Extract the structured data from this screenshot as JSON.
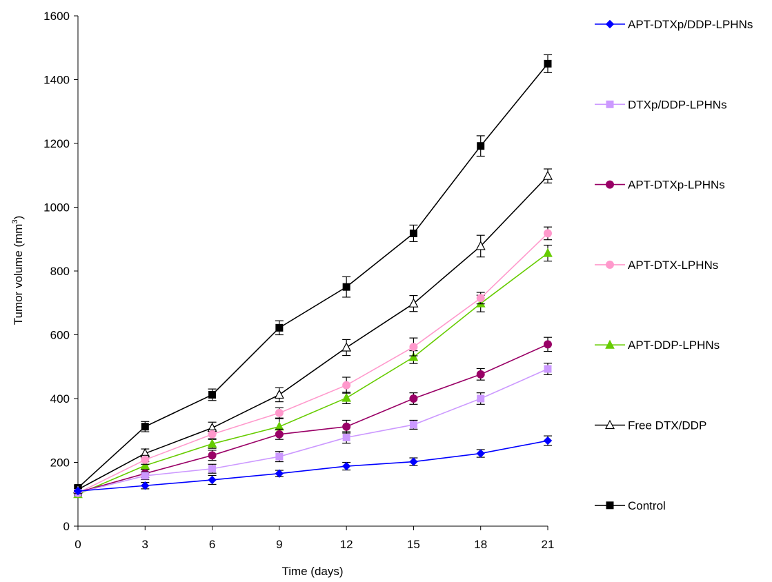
{
  "chart_data": {
    "type": "line",
    "xlabel": "Time (days)",
    "ylabel_main": "Tumor volume (mm",
    "ylabel_sup": "3",
    "ylabel_tail": ")",
    "x": [
      0,
      3,
      6,
      9,
      12,
      15,
      18,
      21
    ],
    "xlim": [
      0,
      21
    ],
    "ylim": [
      0,
      1600
    ],
    "yticks": [
      0,
      200,
      400,
      600,
      800,
      1000,
      1200,
      1400,
      1600
    ],
    "xticks": [
      0,
      3,
      6,
      9,
      12,
      15,
      18,
      21
    ],
    "grid": false,
    "legend_position": "right",
    "series": [
      {
        "name": "APT-DTXp/DDP-LPHNs",
        "color": "#0000ff",
        "marker": "diamond",
        "values": [
          110,
          127,
          145,
          165,
          188,
          202,
          228,
          268
        ],
        "errors": [
          8,
          10,
          14,
          10,
          12,
          12,
          12,
          15
        ]
      },
      {
        "name": "DTXp/DDP-LPHNs",
        "color": "#cc99ff",
        "marker": "square",
        "values": [
          105,
          158,
          180,
          218,
          278,
          318,
          400,
          493
        ],
        "errors": [
          8,
          12,
          14,
          16,
          18,
          14,
          18,
          18
        ]
      },
      {
        "name": "APT-DTXp-LPHNs",
        "color": "#990066",
        "marker": "circle",
        "values": [
          106,
          165,
          222,
          288,
          312,
          400,
          476,
          570
        ],
        "errors": [
          8,
          12,
          16,
          16,
          20,
          18,
          18,
          22
        ]
      },
      {
        "name": "APT-DTX-LPHNs",
        "color": "#ff99cc",
        "marker": "circle",
        "values": [
          104,
          208,
          288,
          355,
          442,
          562,
          715,
          918
        ],
        "errors": [
          8,
          14,
          14,
          16,
          25,
          28,
          18,
          20
        ]
      },
      {
        "name": "APT-DDP-LPHNs",
        "color": "#66cc00",
        "marker": "triangle",
        "values": [
          100,
          190,
          258,
          312,
          402,
          530,
          698,
          856
        ],
        "errors": [
          8,
          12,
          14,
          25,
          18,
          20,
          26,
          25
        ]
      },
      {
        "name": "Free DTX/DDP",
        "color": "#000000",
        "marker": "triangle-open",
        "values": [
          115,
          228,
          308,
          412,
          560,
          698,
          878,
          1098
        ],
        "errors": [
          8,
          14,
          18,
          22,
          25,
          25,
          34,
          22
        ]
      },
      {
        "name": "Control",
        "color": "#000000",
        "marker": "square",
        "values": [
          120,
          312,
          412,
          622,
          750,
          918,
          1192,
          1450
        ],
        "errors": [
          8,
          16,
          18,
          22,
          32,
          26,
          32,
          28
        ]
      }
    ]
  }
}
